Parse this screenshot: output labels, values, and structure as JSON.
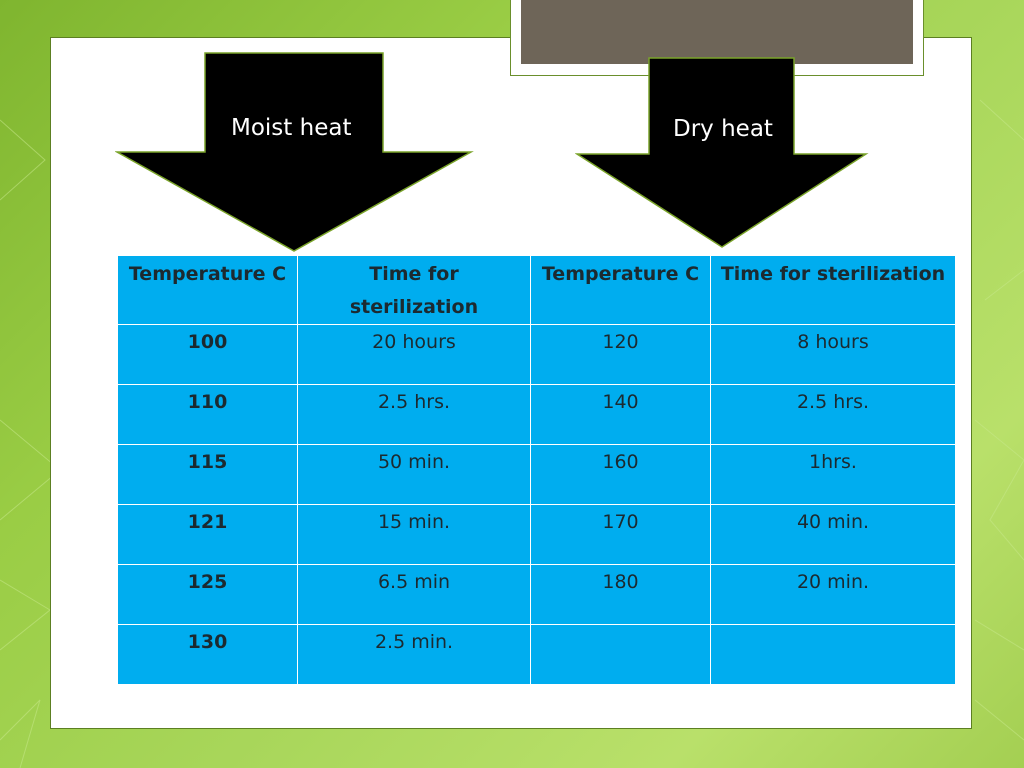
{
  "slide": {
    "arrows": {
      "left_label": "Moist heat",
      "right_label": "Dry heat"
    },
    "table": {
      "headers": [
        "Temperature C",
        "Time for sterilization",
        "Temperature C",
        "Time for sterilization"
      ],
      "rows": [
        [
          "100",
          "20 hours",
          "120",
          "8 hours"
        ],
        [
          "110",
          "2.5 hrs.",
          "140",
          "2.5 hrs."
        ],
        [
          "115",
          "50 min.",
          "160",
          "1hrs."
        ],
        [
          "121",
          "15 min.",
          "170",
          "40 min."
        ],
        [
          "125",
          "6.5 min",
          "180",
          "20 min."
        ],
        [
          "130",
          "2.5 min.",
          "",
          ""
        ]
      ]
    },
    "colors": {
      "table_cell": "#00adef",
      "arrow_fill": "#000000",
      "arrow_outline": "#7aa32a",
      "background_green": "#9acd45"
    }
  }
}
